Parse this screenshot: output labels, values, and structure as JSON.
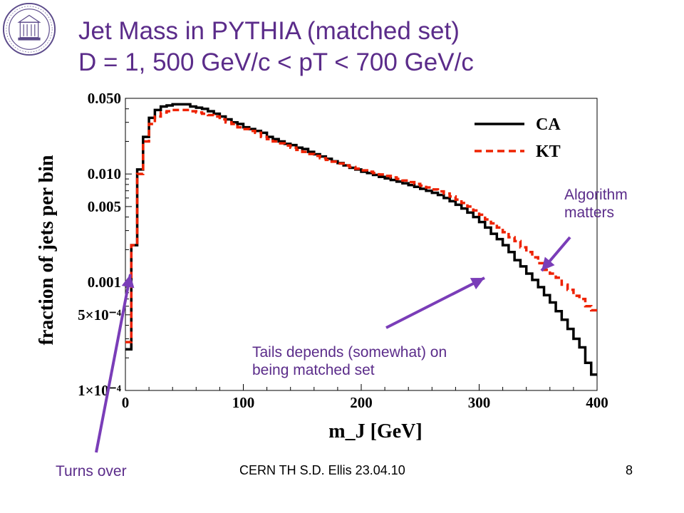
{
  "slide": {
    "title_line1": "Jet Mass in PYTHIA (matched set)",
    "title_line2": "D = 1, 500 GeV/c < pT < 700 GeV/c",
    "footer_center": "CERN TH     S.D. Ellis    23.04.10",
    "page_number": "8"
  },
  "annotations": {
    "algorithm": [
      "Algorithm",
      "matters"
    ],
    "tails": [
      "Tails depends (somewhat) on",
      "being matched set"
    ],
    "turns_over": "Turns over"
  },
  "colors": {
    "title": "#5b2c8a",
    "annotation": "#5b2c8a",
    "arrow": "#7a3db8",
    "ca": "#000000",
    "kt": "#ee2200"
  },
  "chart_data": {
    "type": "line",
    "xlabel": "m_J [GeV]",
    "ylabel": "fraction of jets per bin",
    "xlim": [
      0,
      400
    ],
    "ylim": [
      0.0001,
      0.05
    ],
    "yscale": "log",
    "xticks": [
      "0",
      "100",
      "200",
      "300",
      "400"
    ],
    "xtick_values": [
      0,
      100,
      200,
      300,
      400
    ],
    "yticks": [
      "0.050",
      "0.010",
      "0.005",
      "0.001",
      "5×10⁻⁴",
      "1×10⁻⁴"
    ],
    "ytick_values": [
      0.05,
      0.01,
      0.005,
      0.001,
      0.0005,
      0.0001
    ],
    "legend_position": "top-right",
    "bin_width": 5,
    "series": [
      {
        "name": "CA",
        "style": "solid",
        "values": [
          0.00024,
          0.0022,
          0.011,
          0.022,
          0.033,
          0.039,
          0.042,
          0.043,
          0.044,
          0.044,
          0.044,
          0.042,
          0.041,
          0.04,
          0.038,
          0.036,
          0.034,
          0.032,
          0.03,
          0.029,
          0.027,
          0.026,
          0.025,
          0.024,
          0.022,
          0.021,
          0.02,
          0.019,
          0.0185,
          0.0175,
          0.017,
          0.016,
          0.0152,
          0.0145,
          0.0138,
          0.0131,
          0.0126,
          0.012,
          0.0114,
          0.011,
          0.0105,
          0.0102,
          0.0098,
          0.0094,
          0.0091,
          0.0088,
          0.0085,
          0.0082,
          0.0079,
          0.0076,
          0.0073,
          0.007,
          0.0067,
          0.0064,
          0.006,
          0.0056,
          0.0052,
          0.0048,
          0.0044,
          0.004,
          0.0036,
          0.0032,
          0.0028,
          0.0025,
          0.0022,
          0.0019,
          0.0016,
          0.0014,
          0.0012,
          0.00105,
          0.0009,
          0.00076,
          0.00065,
          0.00054,
          0.00045,
          0.00037,
          0.0003,
          0.00025,
          0.00018,
          0.00014
        ]
      },
      {
        "name": "KT",
        "style": "dashed",
        "values": [
          0.00028,
          0.0022,
          0.01,
          0.02,
          0.029,
          0.034,
          0.037,
          0.038,
          0.039,
          0.039,
          0.039,
          0.038,
          0.037,
          0.036,
          0.035,
          0.034,
          0.032,
          0.03,
          0.029,
          0.027,
          0.026,
          0.025,
          0.024,
          0.022,
          0.021,
          0.02,
          0.0192,
          0.0183,
          0.0175,
          0.0167,
          0.016,
          0.0153,
          0.0147,
          0.014,
          0.0135,
          0.013,
          0.0125,
          0.012,
          0.0116,
          0.0112,
          0.0108,
          0.0105,
          0.0102,
          0.0099,
          0.0096,
          0.0093,
          0.009,
          0.0087,
          0.0084,
          0.0081,
          0.0078,
          0.0075,
          0.0072,
          0.0069,
          0.0066,
          0.0062,
          0.0058,
          0.0054,
          0.005,
          0.0046,
          0.0042,
          0.0038,
          0.0035,
          0.0032,
          0.0029,
          0.0026,
          0.0024,
          0.0021,
          0.0019,
          0.0017,
          0.0015,
          0.0013,
          0.0012,
          0.0011,
          0.00095,
          0.00085,
          0.00075,
          0.0007,
          0.0006,
          0.00055
        ]
      }
    ]
  }
}
